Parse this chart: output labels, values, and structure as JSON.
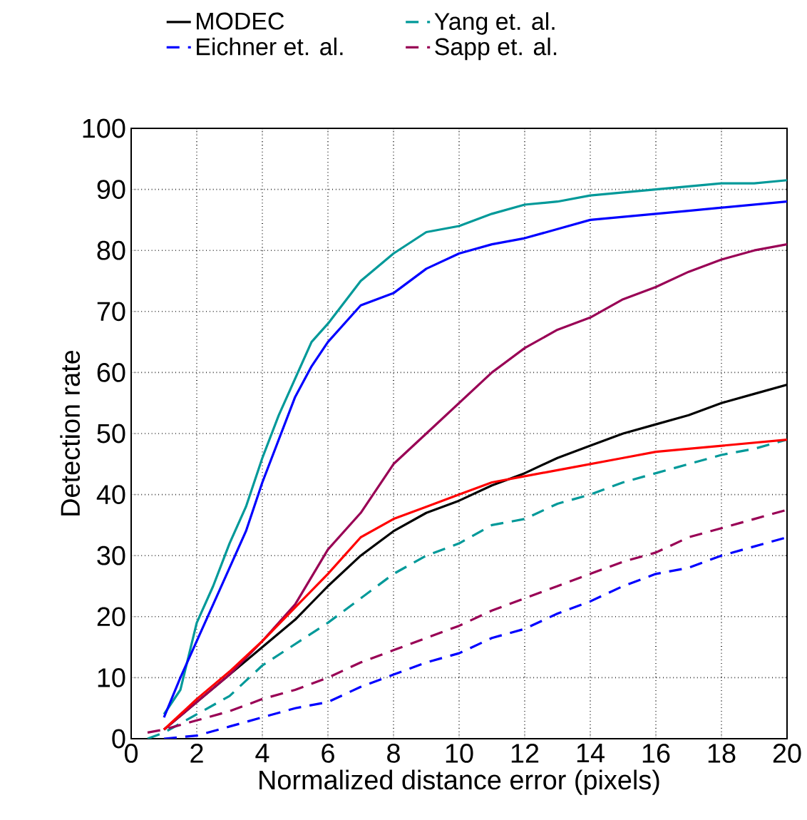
{
  "chart_data": {
    "type": "line",
    "xlabel": "Normalized distance error (pixels)",
    "ylabel": "Detection rate",
    "xlim": [
      0,
      20
    ],
    "ylim": [
      0,
      100
    ],
    "xticks": [
      0,
      2,
      4,
      6,
      8,
      10,
      12,
      14,
      16,
      18,
      20
    ],
    "yticks": [
      0,
      10,
      20,
      30,
      40,
      50,
      60,
      70,
      80,
      90,
      100
    ],
    "grid": true,
    "legend": "top",
    "line_style": "solid",
    "series": [
      {
        "name": "MODEC",
        "color": "#000000",
        "x": [
          1,
          2,
          3,
          4,
          5,
          6,
          7,
          8,
          9,
          10,
          11,
          12,
          13,
          14,
          15,
          16,
          17,
          18,
          19,
          20
        ],
        "values": [
          1.5,
          6,
          10.5,
          15,
          19.5,
          25,
          30,
          34,
          37,
          39,
          41.5,
          43.5,
          46,
          48,
          50,
          51.5,
          53,
          55,
          56.5,
          58
        ]
      },
      {
        "name": "Yang et. al.",
        "color": "#009999",
        "line_style": "dashed",
        "x": [
          0.5,
          1,
          2,
          3,
          4,
          5,
          6,
          7,
          8,
          9,
          10,
          11,
          12,
          13,
          14,
          15,
          16,
          17,
          18,
          19,
          20
        ],
        "values": [
          0,
          1,
          4,
          7,
          12,
          15.5,
          19,
          23,
          27,
          30,
          32,
          35,
          36,
          38.5,
          40,
          42,
          43.5,
          45,
          46.5,
          47.5,
          49
        ]
      },
      {
        "name": "Eichner et. al.",
        "color": "#0000ff",
        "line_style": "dashed",
        "x": [
          1,
          2,
          3,
          4,
          5,
          6,
          7,
          8,
          9,
          10,
          11,
          12,
          13,
          14,
          15,
          16,
          17,
          18,
          19,
          20
        ],
        "values": [
          0,
          0.5,
          2,
          3.5,
          5,
          6,
          8.5,
          10.5,
          12.5,
          14,
          16.5,
          18,
          20.5,
          22.5,
          25,
          27,
          28,
          30,
          31.5,
          33
        ]
      },
      {
        "name": "Sapp et. al.",
        "color": "#990055",
        "line_style": "dashed",
        "x": [
          0.5,
          1,
          2,
          3,
          4,
          5,
          6,
          7,
          8,
          9,
          10,
          11,
          12,
          13,
          14,
          15,
          16,
          17,
          18,
          19,
          20
        ],
        "values": [
          1,
          1.5,
          3,
          4.5,
          6.5,
          8,
          10,
          12.5,
          14.5,
          16.5,
          18.5,
          21,
          23,
          25,
          27,
          29,
          30.5,
          33,
          34.5,
          36,
          37.5
        ]
      },
      {
        "color": "#009999",
        "x": [
          1,
          1.5,
          2,
          2.5,
          3,
          3.5,
          4,
          4.5,
          5,
          5.5,
          6,
          7,
          8,
          9,
          10,
          11,
          12,
          13,
          14,
          15,
          16,
          17,
          18,
          19,
          20
        ],
        "values": [
          4,
          8,
          19,
          25,
          32,
          38,
          46,
          53,
          59,
          65,
          68,
          75,
          79.5,
          83,
          84,
          86,
          87.5,
          88,
          89,
          89.5,
          90,
          90.5,
          91,
          91,
          91.5
        ]
      },
      {
        "color": "#0000ff",
        "x": [
          1,
          1.5,
          2,
          2.5,
          3,
          3.5,
          4,
          4.5,
          5,
          5.5,
          6,
          7,
          8,
          9,
          10,
          11,
          12,
          13,
          14,
          15,
          16,
          17,
          18,
          19,
          20
        ],
        "values": [
          3.5,
          10,
          16,
          22,
          28,
          34,
          42,
          49,
          56,
          61,
          65,
          71,
          73,
          77,
          79.5,
          81,
          82,
          83.5,
          85,
          85.5,
          86,
          86.5,
          87,
          87.5,
          88
        ]
      },
      {
        "color": "#990055",
        "x": [
          1,
          2,
          3,
          4,
          5,
          6,
          7,
          8,
          9,
          10,
          11,
          12,
          13,
          14,
          15,
          16,
          17,
          18,
          19,
          20
        ],
        "values": [
          1.5,
          6,
          10.5,
          16,
          22,
          31,
          37,
          45,
          50,
          55,
          60,
          64,
          67,
          69,
          72,
          74,
          76.5,
          78.5,
          80,
          81
        ]
      },
      {
        "color": "#ff0000",
        "x": [
          1,
          2,
          3,
          4,
          5,
          6,
          7,
          8,
          9,
          10,
          11,
          12,
          13,
          14,
          15,
          16,
          17,
          18,
          19,
          20
        ],
        "values": [
          1.5,
          6.5,
          11,
          16,
          21.5,
          27,
          33,
          36,
          38,
          40,
          42,
          43,
          44,
          45,
          46,
          47,
          47.5,
          48,
          48.5,
          49
        ]
      }
    ]
  }
}
